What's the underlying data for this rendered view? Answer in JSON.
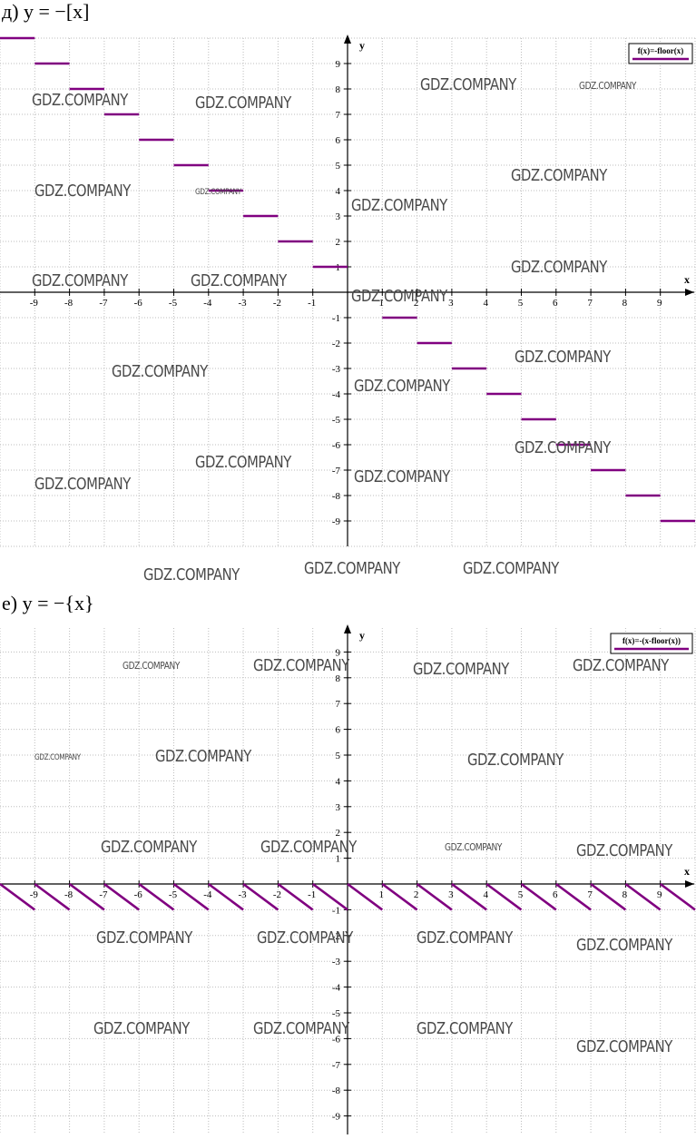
{
  "panels": [
    {
      "title": "д) y = −[x]",
      "legend": "f(x)=-floor(x)",
      "chart_data": {
        "type": "line",
        "subtype": "step",
        "function": "f(x)=-floor(x)",
        "xlabel": "x",
        "ylabel": "y",
        "xlim": [
          -10,
          10
        ],
        "ylim": [
          -10,
          10
        ],
        "xticks": [
          -9,
          -8,
          -7,
          -6,
          -5,
          -4,
          -3,
          -2,
          -1,
          1,
          2,
          3,
          4,
          5,
          6,
          7,
          8,
          9
        ],
        "yticks": [
          9,
          8,
          7,
          6,
          5,
          4,
          3,
          2,
          1,
          -1,
          -2,
          -3,
          -4,
          -5,
          -6,
          -7,
          -8,
          -9
        ],
        "grid": true,
        "legend_position": "top-right",
        "series_color": "#800080",
        "segments": [
          {
            "x": [
              -10,
              -9
            ],
            "y": [
              10,
              10
            ]
          },
          {
            "x": [
              -9,
              -8
            ],
            "y": [
              9,
              9
            ]
          },
          {
            "x": [
              -8,
              -7
            ],
            "y": [
              8,
              8
            ]
          },
          {
            "x": [
              -7,
              -6
            ],
            "y": [
              7,
              7
            ]
          },
          {
            "x": [
              -6,
              -5
            ],
            "y": [
              6,
              6
            ]
          },
          {
            "x": [
              -5,
              -4
            ],
            "y": [
              5,
              5
            ]
          },
          {
            "x": [
              -4,
              -3
            ],
            "y": [
              4,
              4
            ]
          },
          {
            "x": [
              -3,
              -2
            ],
            "y": [
              3,
              3
            ]
          },
          {
            "x": [
              -2,
              -1
            ],
            "y": [
              2,
              2
            ]
          },
          {
            "x": [
              -1,
              0
            ],
            "y": [
              1,
              1
            ]
          },
          {
            "x": [
              1,
              2
            ],
            "y": [
              -1,
              -1
            ]
          },
          {
            "x": [
              2,
              3
            ],
            "y": [
              -2,
              -2
            ]
          },
          {
            "x": [
              3,
              4
            ],
            "y": [
              -3,
              -3
            ]
          },
          {
            "x": [
              4,
              5
            ],
            "y": [
              -4,
              -4
            ]
          },
          {
            "x": [
              5,
              6
            ],
            "y": [
              -5,
              -5
            ]
          },
          {
            "x": [
              6,
              7
            ],
            "y": [
              -6,
              -6
            ]
          },
          {
            "x": [
              7,
              8
            ],
            "y": [
              -7,
              -7
            ]
          },
          {
            "x": [
              8,
              9
            ],
            "y": [
              -8,
              -8
            ]
          },
          {
            "x": [
              9,
              10
            ],
            "y": [
              -9,
              -9
            ]
          }
        ]
      }
    },
    {
      "title": "е) y = −{x}",
      "legend": "f(x)=-(x-floor(x))",
      "chart_data": {
        "type": "line",
        "subtype": "sawtooth",
        "function": "f(x)=-(x-floor(x))",
        "xlabel": "x",
        "ylabel": "y",
        "xlim": [
          -10,
          10
        ],
        "ylim": [
          -10,
          10
        ],
        "xticks": [
          -9,
          -8,
          -7,
          -6,
          -5,
          -4,
          -3,
          -2,
          -1,
          1,
          2,
          3,
          4,
          5,
          6,
          7,
          8,
          9
        ],
        "yticks": [
          9,
          8,
          7,
          6,
          5,
          4,
          3,
          2,
          1,
          -1,
          -2,
          -3,
          -4,
          -5,
          -6,
          -7,
          -8,
          -9
        ],
        "grid": true,
        "legend_position": "top-right",
        "series_color": "#800080",
        "segments": [
          {
            "x": [
              -10,
              -9
            ],
            "y": [
              0,
              -1
            ]
          },
          {
            "x": [
              -9,
              -8
            ],
            "y": [
              0,
              -1
            ]
          },
          {
            "x": [
              -8,
              -7
            ],
            "y": [
              0,
              -1
            ]
          },
          {
            "x": [
              -7,
              -6
            ],
            "y": [
              0,
              -1
            ]
          },
          {
            "x": [
              -6,
              -5
            ],
            "y": [
              0,
              -1
            ]
          },
          {
            "x": [
              -5,
              -4
            ],
            "y": [
              0,
              -1
            ]
          },
          {
            "x": [
              -4,
              -3
            ],
            "y": [
              0,
              -1
            ]
          },
          {
            "x": [
              -3,
              -2
            ],
            "y": [
              0,
              -1
            ]
          },
          {
            "x": [
              -2,
              -1
            ],
            "y": [
              0,
              -1
            ]
          },
          {
            "x": [
              -1,
              0
            ],
            "y": [
              0,
              -1
            ]
          },
          {
            "x": [
              0,
              1
            ],
            "y": [
              0,
              -1
            ]
          },
          {
            "x": [
              1,
              2
            ],
            "y": [
              0,
              -1
            ]
          },
          {
            "x": [
              2,
              3
            ],
            "y": [
              0,
              -1
            ]
          },
          {
            "x": [
              3,
              4
            ],
            "y": [
              0,
              -1
            ]
          },
          {
            "x": [
              4,
              5
            ],
            "y": [
              0,
              -1
            ]
          },
          {
            "x": [
              5,
              6
            ],
            "y": [
              0,
              -1
            ]
          },
          {
            "x": [
              6,
              7
            ],
            "y": [
              0,
              -1
            ]
          },
          {
            "x": [
              7,
              8
            ],
            "y": [
              0,
              -1
            ]
          },
          {
            "x": [
              8,
              9
            ],
            "y": [
              0,
              -1
            ]
          },
          {
            "x": [
              9,
              10
            ],
            "y": [
              0,
              -1
            ]
          }
        ]
      }
    }
  ],
  "watermark": "GDZ.COMPANY"
}
